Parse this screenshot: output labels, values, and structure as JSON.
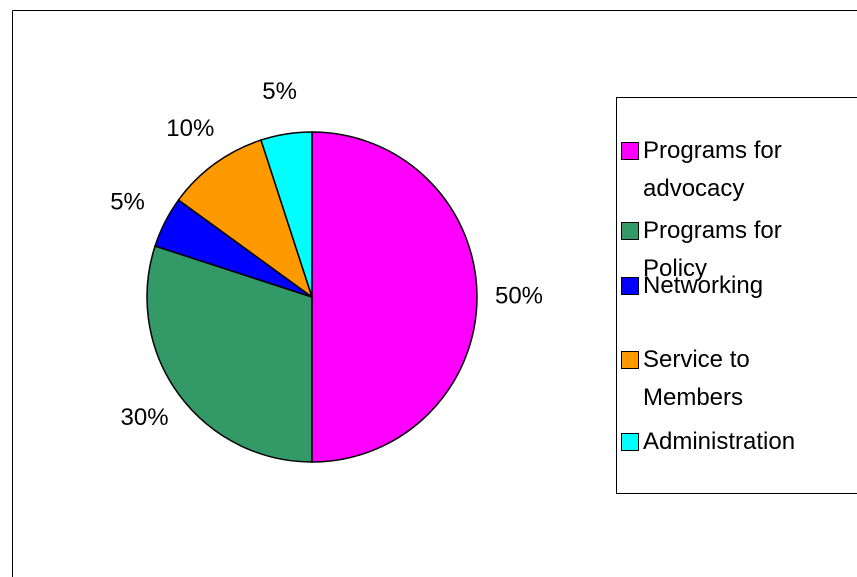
{
  "chart_data": {
    "type": "pie",
    "categories": [
      "Programs for advocacy",
      "Programs for Policy",
      "Networking",
      "Service to Members",
      "Administration"
    ],
    "values": [
      50,
      30,
      5,
      10,
      5
    ],
    "value_labels": [
      "50%",
      "30%",
      "5%",
      "10%",
      "5%"
    ],
    "colors": [
      "#ff00ff",
      "#339966",
      "#0000ff",
      "#ff9900",
      "#00ffff"
    ],
    "legend": "right"
  }
}
